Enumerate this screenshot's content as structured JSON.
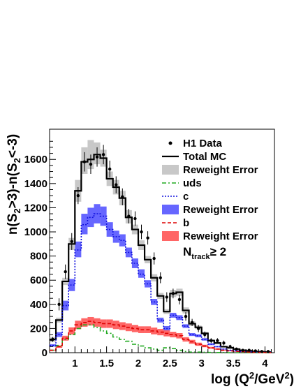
{
  "chart_data": {
    "type": "line",
    "title": "",
    "xlabel": "log (Q²/GeV²)",
    "ylabel": "n(S₂>3)-n(S₂<-3)",
    "xlim": [
      0.6,
      4.15
    ],
    "ylim": [
      0,
      1850
    ],
    "x_ticks": [
      1,
      1.5,
      2,
      2.5,
      3,
      3.5,
      4
    ],
    "x_tick_labels": [
      "1",
      "1.5",
      "2",
      "2.5",
      "3",
      "3.5",
      "4"
    ],
    "y_ticks": [
      0,
      200,
      400,
      600,
      800,
      1000,
      1200,
      1400,
      1600
    ],
    "y_tick_labels": [
      "0",
      "200",
      "400",
      "600",
      "800",
      "1000",
      "1200",
      "1400",
      "1600"
    ],
    "bin_edges": [
      0.6,
      0.7,
      0.8,
      0.9,
      1.0,
      1.1,
      1.2,
      1.3,
      1.4,
      1.5,
      1.6,
      1.7,
      1.8,
      1.9,
      2.0,
      2.1,
      2.2,
      2.3,
      2.4,
      2.5,
      2.6,
      2.7,
      2.8,
      2.9,
      3.0,
      3.1,
      3.2,
      3.3,
      3.4,
      3.5,
      3.6,
      3.7,
      3.8,
      3.9,
      4.0,
      4.1
    ],
    "series": [
      {
        "name": "H1 Data",
        "style": "points",
        "values": [
          110,
          400,
          670,
          920,
          1300,
          1580,
          1560,
          1620,
          1640,
          1520,
          1390,
          1290,
          1130,
          1110,
          1000,
          950,
          780,
          620,
          460,
          490,
          440,
          300,
          250,
          200,
          150,
          100,
          100,
          80,
          50,
          30,
          20,
          20,
          15,
          10,
          10
        ],
        "errors": [
          20,
          50,
          60,
          70,
          70,
          80,
          80,
          80,
          80,
          70,
          70,
          70,
          60,
          60,
          60,
          55,
          50,
          45,
          40,
          40,
          40,
          35,
          30,
          30,
          25,
          20,
          20,
          20,
          15,
          12,
          10,
          10,
          10,
          8,
          8
        ]
      },
      {
        "name": "Total MC",
        "style": "solid",
        "color": "#000000",
        "values": [
          110,
          270,
          590,
          900,
          1340,
          1580,
          1600,
          1640,
          1610,
          1440,
          1370,
          1280,
          1120,
          1020,
          890,
          770,
          620,
          470,
          340,
          490,
          500,
          350,
          240,
          210,
          160,
          100,
          80,
          50,
          40,
          30,
          20,
          15,
          10,
          8,
          5
        ]
      },
      {
        "name": "Reweight Error",
        "style": "band",
        "color": "#c8c8c8",
        "lower": [
          90,
          250,
          560,
          850,
          1250,
          1480,
          1520,
          1560,
          1540,
          1380,
          1310,
          1220,
          1070,
          980,
          850,
          740,
          590,
          445,
          320,
          460,
          470,
          325,
          220,
          195,
          148,
          90,
          72,
          45,
          35,
          26,
          17,
          12,
          8,
          6,
          4
        ],
        "upper": [
          130,
          290,
          620,
          950,
          1430,
          1700,
          1760,
          1740,
          1680,
          1500,
          1430,
          1340,
          1180,
          1060,
          930,
          800,
          650,
          495,
          360,
          520,
          530,
          375,
          260,
          225,
          172,
          110,
          88,
          55,
          45,
          34,
          23,
          18,
          12,
          10,
          6
        ]
      },
      {
        "name": "uds",
        "style": "dashdot",
        "color": "#22aa22",
        "values": [
          20,
          60,
          110,
          150,
          200,
          230,
          230,
          210,
          180,
          160,
          130,
          110,
          95,
          70,
          55,
          40,
          30,
          20,
          40,
          35,
          20,
          10,
          5,
          5,
          3,
          2,
          1,
          1,
          0,
          0,
          0,
          0,
          0,
          0,
          0
        ]
      },
      {
        "name": "c",
        "style": "dotted",
        "color": "#1111dd",
        "values": [
          60,
          150,
          390,
          560,
          850,
          1060,
          1120,
          1150,
          1130,
          1020,
          960,
          930,
          830,
          740,
          650,
          570,
          420,
          270,
          200,
          310,
          290,
          220,
          150,
          140,
          110,
          70,
          50,
          30,
          20,
          15,
          10,
          8,
          5,
          4,
          3
        ]
      },
      {
        "name": "Reweight Error",
        "style": "band",
        "color": "#6666ff",
        "lower": [
          50,
          130,
          350,
          510,
          790,
          980,
          1040,
          1070,
          1050,
          960,
          910,
          880,
          790,
          700,
          620,
          540,
          395,
          250,
          180,
          290,
          270,
          205,
          138,
          128,
          100,
          62,
          44,
          26,
          17,
          12,
          8,
          6,
          4,
          3,
          2
        ],
        "upper": [
          70,
          170,
          430,
          610,
          920,
          1150,
          1200,
          1230,
          1210,
          1080,
          1010,
          980,
          870,
          780,
          690,
          600,
          445,
          290,
          220,
          330,
          310,
          235,
          162,
          152,
          120,
          78,
          56,
          34,
          23,
          18,
          12,
          10,
          6,
          5,
          4
        ]
      },
      {
        "name": "b",
        "style": "dashed",
        "color": "#dd0000",
        "values": [
          20,
          50,
          120,
          180,
          230,
          250,
          260,
          250,
          240,
          240,
          230,
          220,
          210,
          200,
          190,
          190,
          180,
          170,
          160,
          150,
          140,
          110,
          90,
          70,
          55,
          40,
          30,
          20,
          15,
          10,
          8,
          5,
          3,
          2,
          1
        ]
      },
      {
        "name": "Reweight Error",
        "style": "band",
        "color": "#ff6666",
        "lower": [
          15,
          40,
          100,
          150,
          195,
          215,
          225,
          215,
          205,
          205,
          195,
          188,
          178,
          170,
          162,
          162,
          152,
          144,
          135,
          127,
          118,
          92,
          74,
          57,
          45,
          32,
          24,
          16,
          12,
          8,
          6,
          4,
          2,
          1,
          0
        ],
        "upper": [
          25,
          60,
          140,
          210,
          265,
          285,
          295,
          285,
          275,
          275,
          265,
          252,
          242,
          230,
          218,
          218,
          208,
          196,
          185,
          173,
          162,
          128,
          106,
          83,
          65,
          48,
          36,
          24,
          18,
          12,
          10,
          6,
          4,
          3,
          2
        ]
      }
    ],
    "annotation": "N_track ≥ 2",
    "legend_position": "top-right",
    "grid": false
  },
  "legend": {
    "items": [
      {
        "label": "H1 Data",
        "kind": "marker"
      },
      {
        "label": "Total MC",
        "kind": "line",
        "color": "#000000",
        "dash": ""
      },
      {
        "label": "Reweight Error",
        "kind": "box",
        "color": "#c8c8c8"
      },
      {
        "label": "uds",
        "kind": "line",
        "color": "#22aa22",
        "dash": "6,3,2,3"
      },
      {
        "label": "c",
        "kind": "line",
        "color": "#1111dd",
        "dash": "2,2"
      },
      {
        "label": "Reweight Error",
        "kind": "box",
        "color": "#6666ff"
      },
      {
        "label": "b",
        "kind": "line",
        "color": "#dd0000",
        "dash": "5,3"
      },
      {
        "label": "Reweight Error",
        "kind": "box",
        "color": "#ff6666"
      }
    ],
    "annotation_main": "N",
    "annotation_sub": "track",
    "annotation_tail": "≥ 2"
  },
  "axes": {
    "ylabel_parts": [
      "n(S",
      "2",
      ">3)-n(S",
      "2",
      "<-3)"
    ],
    "xlabel_parts": [
      "log (Q",
      "2",
      "/GeV",
      "2",
      ")"
    ]
  }
}
